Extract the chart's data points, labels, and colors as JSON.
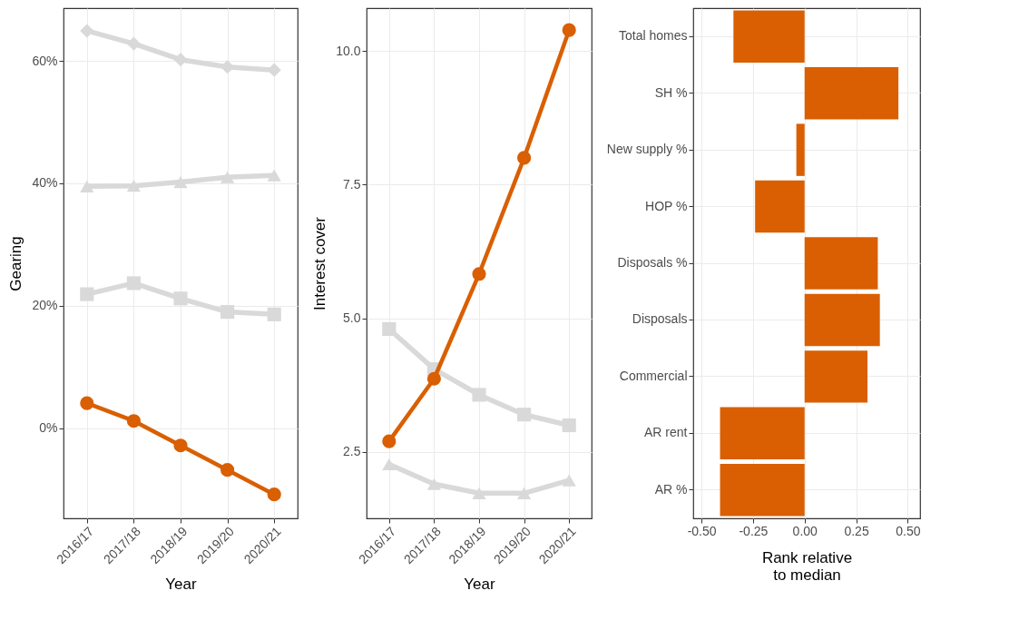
{
  "chart_data": [
    {
      "type": "line",
      "xlabel": "Year",
      "ylabel": "Gearing",
      "categories": [
        "2016/17",
        "2017/18",
        "2018/19",
        "2019/20",
        "2020/21"
      ],
      "ylim": [
        -14.7,
        68.6
      ],
      "yticks": [
        {
          "value": 0,
          "label": "0%"
        },
        {
          "value": 20,
          "label": "20%"
        },
        {
          "value": 40,
          "label": "40%"
        },
        {
          "value": 60,
          "label": "60%"
        }
      ],
      "grid": true,
      "series": [
        {
          "color": "#d9d9d9",
          "marker": "diamond",
          "values": [
            64.9,
            62.8,
            60.2,
            59.0,
            58.5
          ]
        },
        {
          "color": "#d9d9d9",
          "marker": "triangle",
          "values": [
            39.5,
            39.6,
            40.2,
            41.0,
            41.3
          ]
        },
        {
          "color": "#d9d9d9",
          "marker": "square",
          "values": [
            21.9,
            23.7,
            21.2,
            19.0,
            18.6
          ]
        },
        {
          "color": "#d95f02",
          "marker": "circle",
          "values": [
            4.1,
            1.2,
            -2.8,
            -6.8,
            -10.8
          ]
        }
      ]
    },
    {
      "type": "line",
      "xlabel": "Year",
      "ylabel": "Interest cover",
      "categories": [
        "2016/17",
        "2017/18",
        "2018/19",
        "2019/20",
        "2020/21"
      ],
      "ylim": [
        1.26,
        10.8
      ],
      "yticks": [
        {
          "value": 2.5,
          "label": "2.5"
        },
        {
          "value": 5,
          "label": "5.0"
        },
        {
          "value": 7.5,
          "label": "7.5"
        },
        {
          "value": 10,
          "label": "10.0"
        }
      ],
      "grid": true,
      "series": [
        {
          "color": "#d9d9d9",
          "marker": "square",
          "values": [
            4.8,
            4.05,
            3.57,
            3.2,
            3.0
          ]
        },
        {
          "color": "#d9d9d9",
          "marker": "triangle",
          "values": [
            2.27,
            1.9,
            1.73,
            1.73,
            1.97
          ]
        },
        {
          "color": "#d95f02",
          "marker": "circle",
          "values": [
            2.7,
            3.87,
            5.83,
            8.0,
            10.39
          ]
        }
      ]
    },
    {
      "type": "bar",
      "orientation": "horizontal",
      "xlabel": "Rank relative\nto median",
      "categories": [
        "Total homes",
        "SH %",
        "New supply %",
        "HOP %",
        "Disposals %",
        "Disposals",
        "Commercial",
        "AR rent",
        "AR %"
      ],
      "values": [
        -0.345,
        0.455,
        -0.04,
        -0.24,
        0.355,
        0.365,
        0.305,
        -0.41,
        -0.41
      ],
      "color": "#d95f02",
      "xlim": [
        -0.54,
        0.56
      ],
      "xticks": [
        {
          "value": -0.5,
          "label": "-0.50"
        },
        {
          "value": -0.25,
          "label": "-0.25"
        },
        {
          "value": 0,
          "label": "0.00"
        },
        {
          "value": 0.25,
          "label": "0.25"
        },
        {
          "value": 0.5,
          "label": "0.50"
        }
      ],
      "grid": true
    }
  ]
}
